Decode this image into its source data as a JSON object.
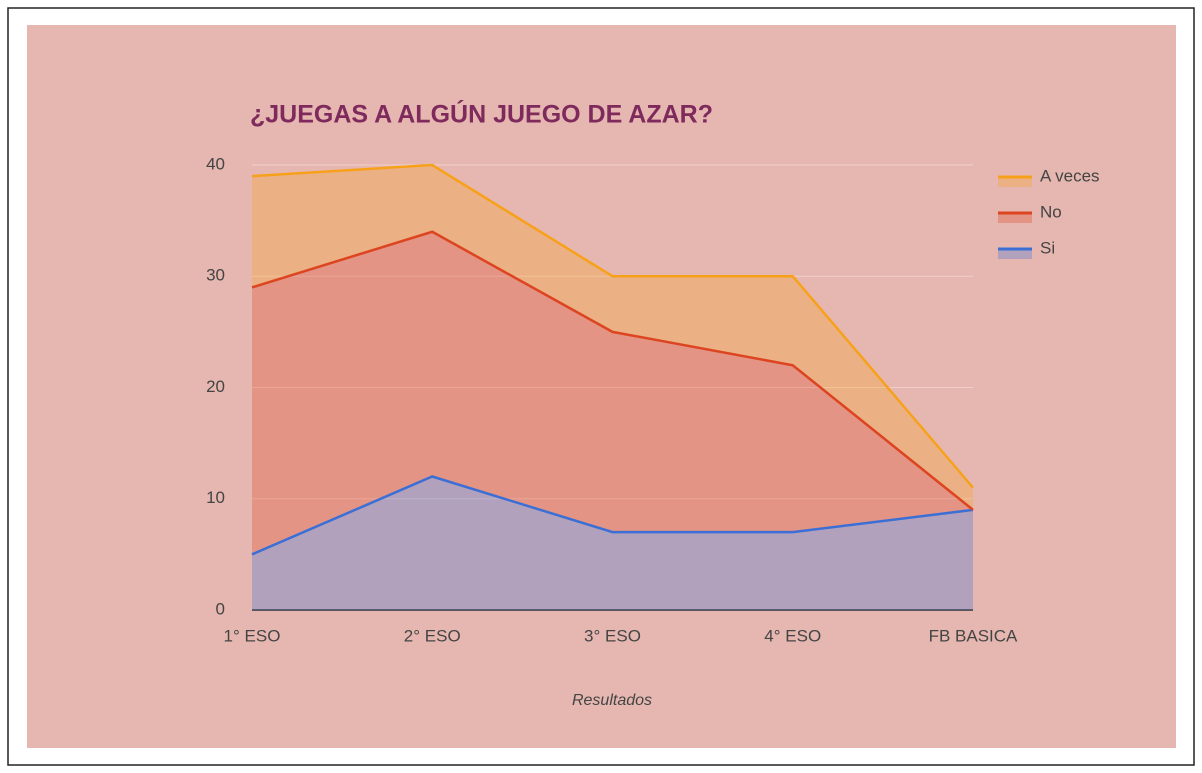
{
  "chart_data": {
    "type": "stacked_area",
    "title": "¿JUEGAS A ALGÚN JUEGO DE AZAR?",
    "xlabel": "Resultados",
    "categories": [
      "1° ESO",
      "2° ESO",
      "3° ESO",
      "4° ESO",
      "FB BASICA"
    ],
    "series": [
      {
        "name": "Si",
        "color": "#3b6fd6",
        "values": [
          5,
          12,
          7,
          7,
          9
        ]
      },
      {
        "name": "No",
        "color": "#dd4420",
        "values": [
          24,
          22,
          18,
          15,
          0
        ]
      },
      {
        "name": "A veces",
        "color": "#f7a11a",
        "values": [
          10,
          6,
          5,
          8,
          2
        ]
      }
    ],
    "ylim": [
      0,
      40
    ],
    "yticks": [
      0,
      10,
      20,
      30,
      40
    ],
    "grid": true,
    "legend": "right"
  }
}
